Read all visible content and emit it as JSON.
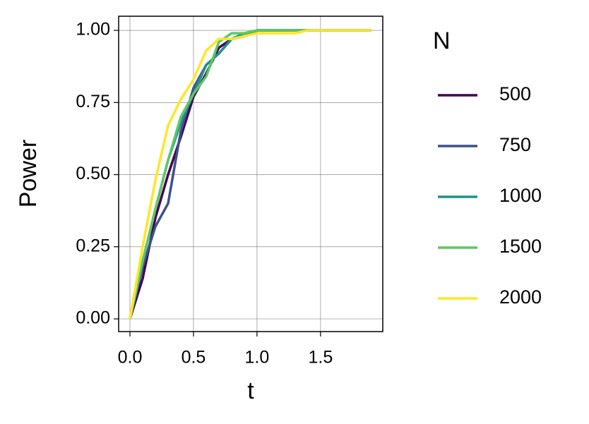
{
  "chart_data": {
    "type": "line",
    "x_label": "t",
    "y_label": "Power",
    "x": [
      0,
      0.1,
      0.2,
      0.3,
      0.4,
      0.5,
      0.6,
      0.7,
      0.8,
      0.9,
      1.0,
      1.1,
      1.2,
      1.3,
      1.4,
      1.5,
      1.6,
      1.7,
      1.8,
      1.9
    ],
    "legend_title": "N",
    "series": [
      {
        "name": "500",
        "color": "#440154",
        "values": [
          0,
          0.14,
          0.35,
          0.5,
          0.63,
          0.77,
          0.85,
          0.94,
          0.97,
          0.98,
          1.0,
          1.0,
          1.0,
          1.0,
          1.0,
          1.0,
          1.0,
          1.0,
          1.0,
          1.0
        ]
      },
      {
        "name": "750",
        "color": "#3b528b",
        "values": [
          0,
          0.18,
          0.32,
          0.4,
          0.65,
          0.8,
          0.88,
          0.92,
          0.97,
          0.98,
          1.0,
          1.0,
          1.0,
          1.0,
          1.0,
          1.0,
          1.0,
          1.0,
          1.0,
          1.0
        ]
      },
      {
        "name": "1000",
        "color": "#21908c",
        "values": [
          0,
          0.2,
          0.38,
          0.55,
          0.68,
          0.78,
          0.88,
          0.92,
          0.97,
          0.99,
          1.0,
          1.0,
          1.0,
          1.0,
          1.0,
          1.0,
          1.0,
          1.0,
          1.0,
          1.0
        ]
      },
      {
        "name": "1500",
        "color": "#5dc863",
        "values": [
          0,
          0.2,
          0.38,
          0.55,
          0.7,
          0.78,
          0.84,
          0.96,
          0.99,
          0.99,
          1.0,
          1.0,
          1.0,
          1.0,
          1.0,
          1.0,
          1.0,
          1.0,
          1.0,
          1.0
        ]
      },
      {
        "name": "2000",
        "color": "#fde725",
        "values": [
          0,
          0.25,
          0.48,
          0.67,
          0.76,
          0.83,
          0.93,
          0.97,
          0.97,
          0.98,
          0.99,
          0.99,
          0.99,
          0.99,
          1.0,
          1.0,
          1.0,
          1.0,
          1.0,
          1.0
        ]
      }
    ],
    "xlim": [
      -0.089,
      1.99
    ],
    "ylim": [
      -0.044,
      1.049
    ],
    "xticks": [
      {
        "value": 0,
        "label": "0.0"
      },
      {
        "value": 0.5,
        "label": "0.5"
      },
      {
        "value": 1,
        "label": "1.0"
      },
      {
        "value": 1.5,
        "label": "1.5"
      }
    ],
    "yticks": [
      {
        "value": 0,
        "label": "0.00"
      },
      {
        "value": 0.25,
        "label": "0.25"
      },
      {
        "value": 0.5,
        "label": "0.50"
      },
      {
        "value": 0.75,
        "label": "0.75"
      },
      {
        "value": 1,
        "label": "1.00"
      }
    ],
    "grid": true
  }
}
